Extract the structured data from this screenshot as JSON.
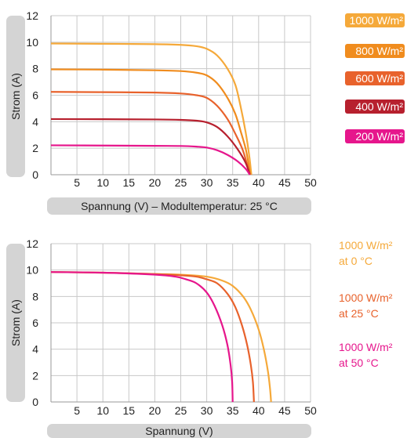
{
  "chart_data": [
    {
      "type": "line",
      "title": "",
      "xlabel": "Spannung (V) – Modultemperatur: 25 °C",
      "ylabel": "Strom (A)",
      "xlim": [
        0,
        50
      ],
      "ylim": [
        0,
        12
      ],
      "x_ticks": [
        5,
        10,
        15,
        20,
        25,
        30,
        35,
        40,
        45,
        50
      ],
      "y_ticks": [
        0,
        2,
        4,
        6,
        8,
        10,
        12
      ],
      "grid": true,
      "legend_position": "right",
      "series": [
        {
          "name": "1000 W/m²",
          "color": "#f5a93a",
          "points": [
            [
              0,
              9.9
            ],
            [
              10,
              9.88
            ],
            [
              20,
              9.85
            ],
            [
              25,
              9.8
            ],
            [
              28,
              9.7
            ],
            [
              30,
              9.5
            ],
            [
              32,
              9.0
            ],
            [
              34,
              8.0
            ],
            [
              35.5,
              6.8
            ],
            [
              36.5,
              5.2
            ],
            [
              37.5,
              3.2
            ],
            [
              38.2,
              1.4
            ],
            [
              38.6,
              0
            ]
          ]
        },
        {
          "name": "800 W/m²",
          "color": "#f08c1e",
          "points": [
            [
              0,
              7.95
            ],
            [
              10,
              7.93
            ],
            [
              20,
              7.88
            ],
            [
              25,
              7.82
            ],
            [
              28,
              7.7
            ],
            [
              30,
              7.5
            ],
            [
              32,
              6.9
            ],
            [
              34,
              5.8
            ],
            [
              35.5,
              4.6
            ],
            [
              36.6,
              3.2
            ],
            [
              37.6,
              1.8
            ],
            [
              38.4,
              0
            ]
          ]
        },
        {
          "name": "600 W/m²",
          "color": "#e8622c",
          "points": [
            [
              0,
              6.25
            ],
            [
              10,
              6.23
            ],
            [
              20,
              6.2
            ],
            [
              25,
              6.13
            ],
            [
              28,
              6.0
            ],
            [
              30,
              5.8
            ],
            [
              32,
              5.2
            ],
            [
              34,
              4.2
            ],
            [
              35.5,
              3.1
            ],
            [
              37,
              1.8
            ],
            [
              38.3,
              0
            ]
          ]
        },
        {
          "name": "400 W/m²",
          "color": "#b7202e",
          "points": [
            [
              0,
              4.2
            ],
            [
              10,
              4.19
            ],
            [
              20,
              4.17
            ],
            [
              25,
              4.14
            ],
            [
              28,
              4.08
            ],
            [
              30,
              3.95
            ],
            [
              32,
              3.6
            ],
            [
              34,
              2.9
            ],
            [
              36,
              1.9
            ],
            [
              37.5,
              0.9
            ],
            [
              38.3,
              0
            ]
          ]
        },
        {
          "name": "200 W/m²",
          "color": "#e6168c",
          "points": [
            [
              0,
              2.22
            ],
            [
              10,
              2.2
            ],
            [
              20,
              2.18
            ],
            [
              25,
              2.17
            ],
            [
              28,
              2.12
            ],
            [
              30,
              2.05
            ],
            [
              32,
              1.85
            ],
            [
              34,
              1.5
            ],
            [
              36,
              1.0
            ],
            [
              37.5,
              0.45
            ],
            [
              38.3,
              0
            ]
          ]
        }
      ]
    },
    {
      "type": "line",
      "title": "",
      "xlabel": "Spannung (V)",
      "ylabel": "Strom (A)",
      "xlim": [
        0,
        50
      ],
      "ylim": [
        0,
        12
      ],
      "x_ticks": [
        5,
        10,
        15,
        20,
        25,
        30,
        35,
        40,
        45,
        50
      ],
      "y_ticks": [
        0,
        2,
        4,
        6,
        8,
        10,
        12
      ],
      "grid": true,
      "legend_position": "right",
      "series": [
        {
          "name_line1": "1000 W/m²",
          "name_line2": "at 0 °C",
          "color": "#f5a93a",
          "points": [
            [
              0,
              9.85
            ],
            [
              10,
              9.8
            ],
            [
              20,
              9.7
            ],
            [
              25,
              9.65
            ],
            [
              30,
              9.5
            ],
            [
              33,
              9.2
            ],
            [
              35,
              8.8
            ],
            [
              37,
              8.0
            ],
            [
              38.5,
              7.0
            ],
            [
              40,
              5.5
            ],
            [
              41,
              4.0
            ],
            [
              41.8,
              2.3
            ],
            [
              42.2,
              1.0
            ],
            [
              42.4,
              0
            ]
          ]
        },
        {
          "name_line1": "1000 W/m²",
          "name_line2": "at 25 °C",
          "color": "#e8622c",
          "points": [
            [
              0,
              9.85
            ],
            [
              10,
              9.8
            ],
            [
              20,
              9.7
            ],
            [
              25,
              9.6
            ],
            [
              28,
              9.5
            ],
            [
              30,
              9.3
            ],
            [
              32,
              9.0
            ],
            [
              34,
              8.2
            ],
            [
              35.5,
              7.2
            ],
            [
              36.8,
              5.8
            ],
            [
              37.8,
              4.3
            ],
            [
              38.5,
              2.8
            ],
            [
              38.9,
              1.5
            ],
            [
              39.1,
              0
            ]
          ]
        },
        {
          "name_line1": "1000 W/m²",
          "name_line2": "at 50 °C",
          "color": "#e6168c",
          "points": [
            [
              0,
              9.85
            ],
            [
              10,
              9.8
            ],
            [
              20,
              9.65
            ],
            [
              24,
              9.5
            ],
            [
              26,
              9.3
            ],
            [
              28,
              9.0
            ],
            [
              30,
              8.3
            ],
            [
              31.5,
              7.3
            ],
            [
              33,
              5.8
            ],
            [
              34,
              4.3
            ],
            [
              34.6,
              2.8
            ],
            [
              34.9,
              1.5
            ],
            [
              35.0,
              0
            ]
          ]
        }
      ]
    }
  ]
}
